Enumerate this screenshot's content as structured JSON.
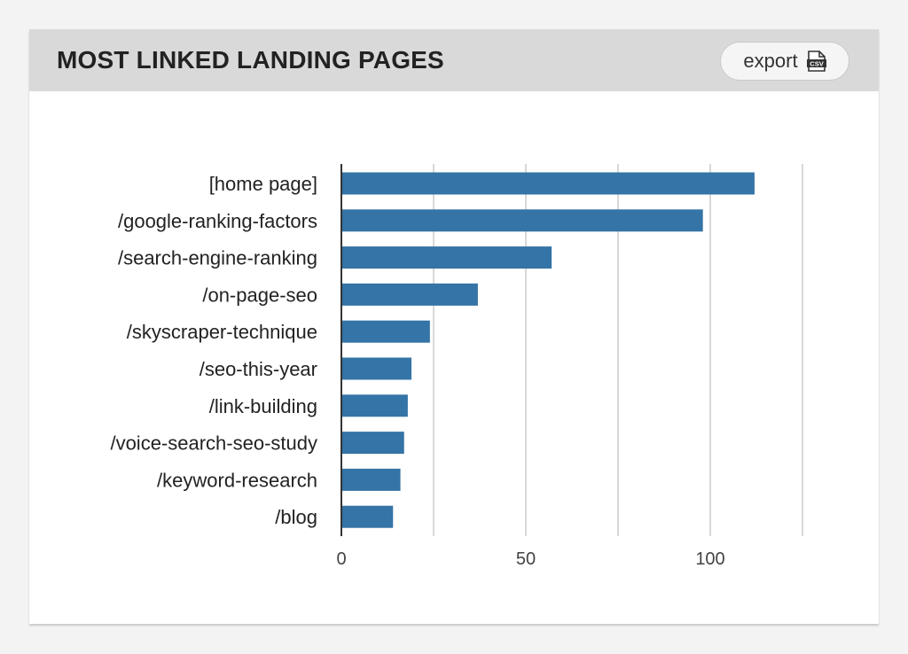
{
  "header": {
    "title": "MOST LINKED LANDING PAGES",
    "export_label": "export",
    "export_icon": "csv-file-icon"
  },
  "colors": {
    "bar": "#3574a6",
    "grid": "#cccccc",
    "axis": "#333333",
    "header_bg": "#d9d9d9"
  },
  "chart_data": {
    "type": "bar",
    "orientation": "horizontal",
    "title": "",
    "xlabel": "",
    "ylabel": "",
    "categories": [
      "[home page]",
      "/google-ranking-factors",
      "/search-engine-ranking",
      "/on-page-seo",
      "/skyscraper-technique",
      "/seo-this-year",
      "/link-building",
      "/voice-search-seo-study",
      "/keyword-research",
      "/blog"
    ],
    "values": [
      112,
      98,
      57,
      37,
      24,
      19,
      18,
      17,
      16,
      14
    ],
    "xlim": [
      0,
      125
    ],
    "xticks": [
      0,
      50,
      100
    ],
    "gridlines": [
      25,
      50,
      75,
      100,
      125
    ],
    "grid": true,
    "legend": "none"
  }
}
